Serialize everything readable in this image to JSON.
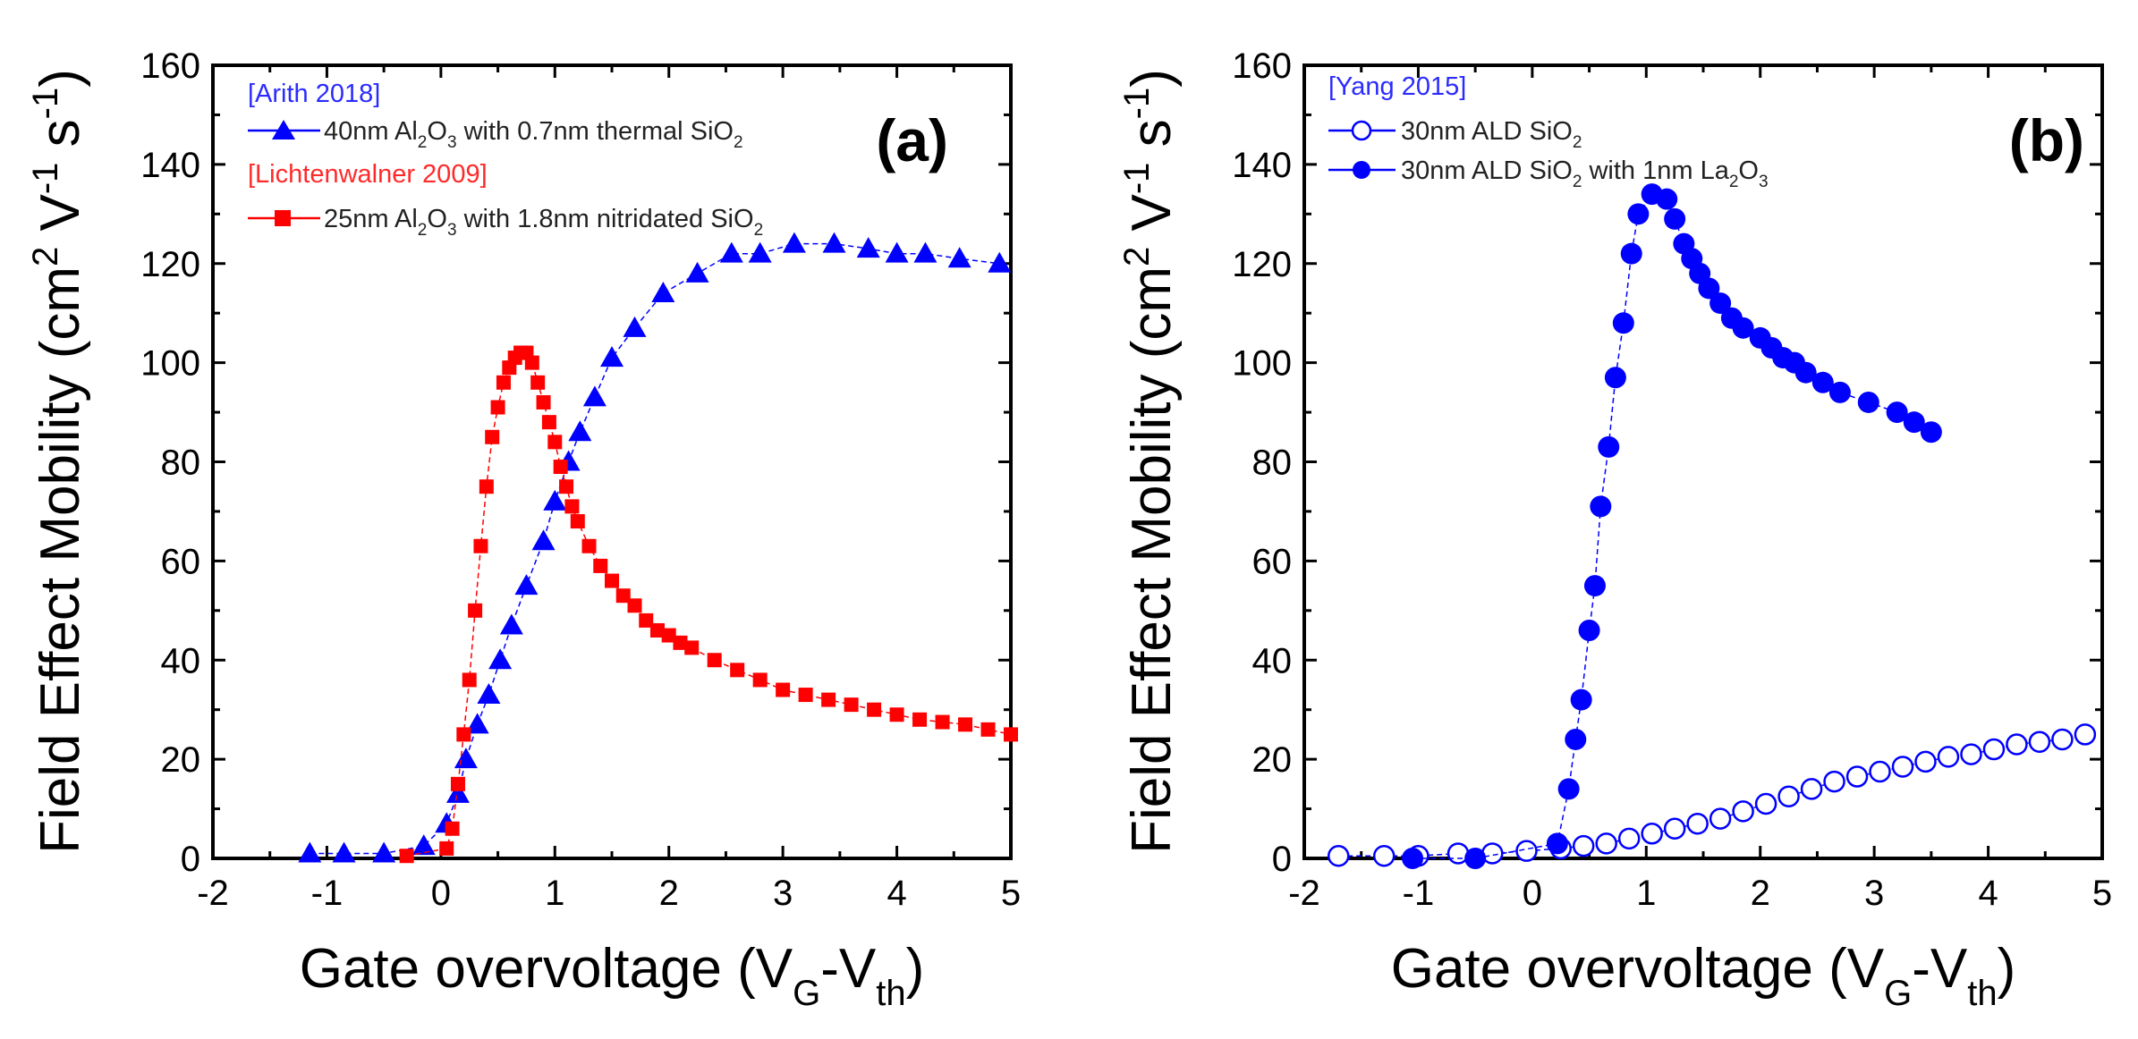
{
  "chart_data": [
    {
      "type": "scatter",
      "panel_label": "(a)",
      "xlabel": "Gate overvoltage",
      "xlabel_main": "Gate overvoltage (V",
      "xlabel_sub1": "G",
      "xlabel_mid": "-V",
      "xlabel_sub2": "th",
      "xlabel_close": ")",
      "ylabel": "Field Effect Mobility",
      "ylabel_main": "Field Effect Mobility (cm",
      "ylabel_sup1": "2",
      "ylabel_mid": " V",
      "ylabel_sup2": "-1",
      "ylabel_mid2": " s",
      "ylabel_sup3": "-1",
      "ylabel_close": ")",
      "xlim": [
        -2,
        5
      ],
      "ylim": [
        0,
        160
      ],
      "xticks": [
        "-2",
        "-1",
        "0",
        "1",
        "2",
        "3",
        "4",
        "5"
      ],
      "yticks": [
        "0",
        "20",
        "40",
        "60",
        "80",
        "100",
        "120",
        "140",
        "160"
      ],
      "legend": [
        {
          "ref": "[Arith 2018]",
          "ref_color": "#2b2bff",
          "parts": [
            "40nm Al",
            "2",
            "O",
            "3",
            " with 0.7nm thermal SiO",
            "2"
          ]
        },
        {
          "ref": "[Lichtenwalner 2009]",
          "ref_color": "#ff2a2a",
          "parts": [
            "25nm Al",
            "2",
            "O",
            "3",
            " with 1.8nm nitridated SiO",
            "2"
          ]
        }
      ],
      "series": [
        {
          "name": "40nm Al2O3 with 0.7nm thermal SiO2",
          "color": "#0000ff",
          "marker": "triangle",
          "x": [
            -1.15,
            -0.85,
            -0.5,
            -0.15,
            0.05,
            0.15,
            0.22,
            0.32,
            0.42,
            0.52,
            0.62,
            0.75,
            0.9,
            1.0,
            1.12,
            1.22,
            1.35,
            1.5,
            1.7,
            1.95,
            2.25,
            2.55,
            2.8,
            3.1,
            3.45,
            3.75,
            4.0,
            4.25,
            4.55,
            4.9
          ],
          "y": [
            1,
            1,
            1,
            2.5,
            7,
            13,
            20,
            27,
            33,
            40,
            47,
            55,
            64,
            72,
            80,
            86,
            93,
            101,
            107,
            114,
            118,
            122,
            122,
            124,
            124,
            123,
            122,
            122,
            121,
            120
          ]
        },
        {
          "name": "25nm Al2O3 with 1.8nm nitridated SiO2",
          "color": "#ff0000",
          "marker": "square",
          "x": [
            -0.3,
            0.05,
            0.1,
            0.15,
            0.2,
            0.25,
            0.3,
            0.35,
            0.4,
            0.45,
            0.5,
            0.55,
            0.6,
            0.65,
            0.7,
            0.75,
            0.8,
            0.85,
            0.9,
            0.95,
            1.0,
            1.05,
            1.1,
            1.15,
            1.2,
            1.3,
            1.4,
            1.5,
            1.6,
            1.7,
            1.8,
            1.9,
            2.0,
            2.1,
            2.2,
            2.4,
            2.6,
            2.8,
            3.0,
            3.2,
            3.4,
            3.6,
            3.8,
            4.0,
            4.2,
            4.4,
            4.6,
            4.8,
            5.0
          ],
          "y": [
            0.5,
            2,
            6,
            15,
            25,
            36,
            50,
            63,
            75,
            85,
            91,
            96,
            99,
            101,
            102,
            102,
            100,
            96,
            92,
            88,
            84,
            79,
            75,
            71,
            68,
            63,
            59,
            56,
            53,
            51,
            48,
            46,
            45,
            43.5,
            42.5,
            40,
            38,
            36,
            34,
            33,
            32,
            31,
            30,
            29,
            28,
            27.5,
            27,
            26,
            25
          ]
        }
      ]
    },
    {
      "type": "scatter",
      "panel_label": "(b)",
      "xlabel": "Gate overvoltage",
      "xlabel_main": "Gate overvoltage (V",
      "xlabel_sub1": "G",
      "xlabel_mid": "-V",
      "xlabel_sub2": "th",
      "xlabel_close": ")",
      "ylabel": "Field Effect Mobility",
      "ylabel_main": "Field Effect Mobility (cm",
      "ylabel_sup1": "2",
      "ylabel_mid": " V",
      "ylabel_sup2": "-1",
      "ylabel_mid2": " s",
      "ylabel_sup3": "-1",
      "ylabel_close": ")",
      "xlim": [
        -2,
        5
      ],
      "ylim": [
        0,
        160
      ],
      "xticks": [
        "-2",
        "-1",
        "0",
        "1",
        "2",
        "3",
        "4",
        "5"
      ],
      "yticks": [
        "0",
        "20",
        "40",
        "60",
        "80",
        "100",
        "120",
        "140",
        "160"
      ],
      "legend": [
        {
          "ref": "[Yang 2015]",
          "ref_color": "#2b2bff",
          "parts": [
            "30nm ALD SiO",
            "2",
            "",
            "",
            "",
            ""
          ]
        },
        {
          "ref": "",
          "ref_color": "#2b2bff",
          "parts": [
            "30nm ALD SiO",
            "2",
            " with 1nm La",
            "2",
            "O",
            "3"
          ]
        }
      ],
      "series": [
        {
          "name": "30nm ALD SiO2",
          "color": "#0000ff",
          "marker": "open-circle",
          "x": [
            -1.7,
            -1.3,
            -1.0,
            -0.65,
            -0.35,
            -0.05,
            0.25,
            0.45,
            0.65,
            0.85,
            1.05,
            1.25,
            1.45,
            1.65,
            1.85,
            2.05,
            2.25,
            2.45,
            2.65,
            2.85,
            3.05,
            3.25,
            3.45,
            3.65,
            3.85,
            4.05,
            4.25,
            4.45,
            4.65,
            4.85
          ],
          "y": [
            0.5,
            0.5,
            0.5,
            1,
            1,
            1.5,
            2,
            2.5,
            3,
            4,
            5,
            6,
            7,
            8,
            9.5,
            11,
            12.5,
            14,
            15.5,
            16.5,
            17.5,
            18.5,
            19.5,
            20.5,
            21,
            22,
            23,
            23.5,
            24,
            25
          ]
        },
        {
          "name": "30nm ALD SiO2 with 1nm La2O3",
          "color": "#0000ff",
          "marker": "filled-circle",
          "x": [
            -1.05,
            -0.5,
            0.22,
            0.32,
            0.38,
            0.43,
            0.5,
            0.55,
            0.6,
            0.67,
            0.73,
            0.8,
            0.87,
            0.93,
            1.05,
            1.18,
            1.25,
            1.33,
            1.4,
            1.47,
            1.55,
            1.65,
            1.75,
            1.85,
            2.0,
            2.1,
            2.2,
            2.3,
            2.4,
            2.55,
            2.7,
            2.95,
            3.2,
            3.35,
            3.5
          ],
          "y": [
            0,
            0,
            3,
            14,
            24,
            32,
            46,
            55,
            71,
            83,
            97,
            108,
            122,
            130,
            134,
            133,
            129,
            124,
            121,
            118,
            115,
            112,
            109,
            107,
            105,
            103,
            101,
            100,
            98,
            96,
            94,
            92,
            90,
            88,
            86
          ]
        }
      ]
    }
  ]
}
